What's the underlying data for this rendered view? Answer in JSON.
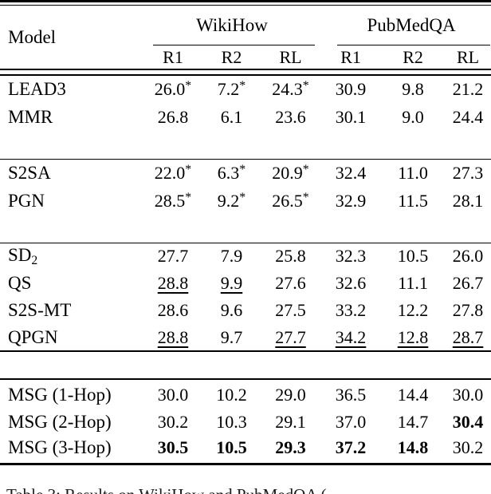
{
  "table": {
    "header": {
      "model": "Model",
      "groups": [
        {
          "label": "WikiHow",
          "cols": [
            "R1",
            "R2",
            "RL"
          ]
        },
        {
          "label": "PubMedQA",
          "cols": [
            "R1",
            "R2",
            "RL"
          ]
        }
      ]
    },
    "sections": [
      {
        "rows": [
          {
            "model": "LEAD3",
            "cells": [
              {
                "v": "26.0",
                "star": true
              },
              {
                "v": "7.2",
                "star": true
              },
              {
                "v": "24.3",
                "star": true
              },
              {
                "v": "30.9"
              },
              {
                "v": "9.8"
              },
              {
                "v": "21.2"
              }
            ]
          },
          {
            "model": "MMR",
            "cells": [
              {
                "v": "26.8"
              },
              {
                "v": "6.1"
              },
              {
                "v": "23.6"
              },
              {
                "v": "30.1"
              },
              {
                "v": "9.0"
              },
              {
                "v": "24.4"
              }
            ]
          }
        ]
      },
      {
        "rows": [
          {
            "model": "S2SA",
            "cells": [
              {
                "v": "22.0",
                "star": true
              },
              {
                "v": "6.3",
                "star": true
              },
              {
                "v": "20.9",
                "star": true
              },
              {
                "v": "32.4"
              },
              {
                "v": "11.0"
              },
              {
                "v": "27.3"
              }
            ]
          },
          {
            "model": "PGN",
            "cells": [
              {
                "v": "28.5",
                "star": true
              },
              {
                "v": "9.2",
                "star": true
              },
              {
                "v": "26.5",
                "star": true
              },
              {
                "v": "32.9"
              },
              {
                "v": "11.5"
              },
              {
                "v": "28.1"
              }
            ]
          }
        ]
      },
      {
        "rows": [
          {
            "model": {
              "text": "SD",
              "sub": "2"
            },
            "cells": [
              {
                "v": "27.7"
              },
              {
                "v": "7.9"
              },
              {
                "v": "25.8"
              },
              {
                "v": "32.3"
              },
              {
                "v": "10.5"
              },
              {
                "v": "26.0"
              }
            ]
          },
          {
            "model": "QS",
            "cells": [
              {
                "v": "28.8",
                "u": true
              },
              {
                "v": "9.9",
                "u": true
              },
              {
                "v": "27.6"
              },
              {
                "v": "32.6"
              },
              {
                "v": "11.1"
              },
              {
                "v": "26.7"
              }
            ]
          },
          {
            "model": "S2S-MT",
            "cells": [
              {
                "v": "28.6"
              },
              {
                "v": "9.6"
              },
              {
                "v": "27.5"
              },
              {
                "v": "33.2"
              },
              {
                "v": "12.2"
              },
              {
                "v": "27.8"
              }
            ]
          },
          {
            "model": "QPGN",
            "cells": [
              {
                "v": "28.8",
                "u": true
              },
              {
                "v": "9.7"
              },
              {
                "v": "27.7",
                "u": true
              },
              {
                "v": "34.2",
                "u": true
              },
              {
                "v": "12.8",
                "u": true
              },
              {
                "v": "28.7",
                "u": true
              }
            ]
          }
        ]
      },
      {
        "rows": [
          {
            "model": "MSG (1-Hop)",
            "cells": [
              {
                "v": "30.0"
              },
              {
                "v": "10.2"
              },
              {
                "v": "29.0"
              },
              {
                "v": "36.5"
              },
              {
                "v": "14.4"
              },
              {
                "v": "30.0"
              }
            ]
          },
          {
            "model": "MSG (2-Hop)",
            "cells": [
              {
                "v": "30.2"
              },
              {
                "v": "10.3"
              },
              {
                "v": "29.1"
              },
              {
                "v": "37.0"
              },
              {
                "v": "14.7"
              },
              {
                "v": "30.4",
                "b": true
              }
            ]
          },
          {
            "model": "MSG (3-Hop)",
            "cells": [
              {
                "v": "30.5",
                "b": true
              },
              {
                "v": "10.5",
                "b": true
              },
              {
                "v": "29.3",
                "b": true
              },
              {
                "v": "37.2",
                "b": true
              },
              {
                "v": "14.8",
                "b": true
              },
              {
                "v": "30.2"
              }
            ]
          }
        ]
      }
    ]
  },
  "caption": "Table 3: Results on WikiHow and PubMedQA ("
}
